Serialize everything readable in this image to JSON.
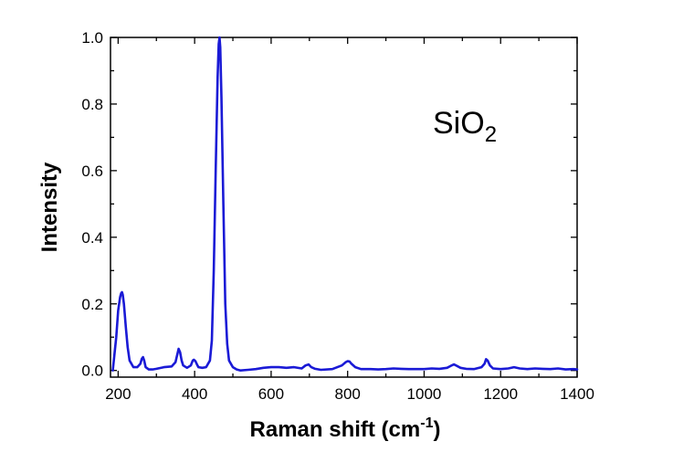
{
  "chart_data": {
    "type": "line",
    "title": "",
    "xlabel": "Raman shift (cm",
    "xlabel_sup": "-1",
    "xlabel_suffix": ")",
    "ylabel": "Intensity",
    "xlim": [
      180,
      1400
    ],
    "ylim": [
      -0.02,
      1.0
    ],
    "xticks": [
      200,
      400,
      600,
      800,
      1000,
      1200,
      1400
    ],
    "xtick_labels": [
      "200",
      "400",
      "600",
      "800",
      "1000",
      "1200",
      "1400"
    ],
    "yticks": [
      0.0,
      0.2,
      0.4,
      0.6,
      0.8,
      1.0
    ],
    "ytick_labels": [
      "0.0",
      "0.2",
      "0.4",
      "0.6",
      "0.8",
      "1.0"
    ],
    "grid": false,
    "legend": "none",
    "annotation": {
      "text": "SiO",
      "subscript": "2",
      "at": [
        1080,
        0.75
      ]
    },
    "series": [
      {
        "name": "SiO2",
        "color": "#1a1ad6",
        "x": [
          186,
          195,
          200,
          205,
          208,
          210,
          212,
          215,
          220,
          225,
          230,
          240,
          250,
          258,
          262,
          265,
          268,
          272,
          280,
          290,
          300,
          320,
          340,
          350,
          355,
          358,
          362,
          366,
          370,
          380,
          390,
          395,
          398,
          402,
          406,
          410,
          420,
          430,
          440,
          445,
          450,
          455,
          460,
          463,
          465,
          467,
          470,
          475,
          480,
          485,
          490,
          500,
          510,
          520,
          540,
          560,
          580,
          600,
          620,
          640,
          660,
          680,
          690,
          698,
          705,
          715,
          730,
          760,
          785,
          795,
          800,
          805,
          810,
          820,
          835,
          860,
          880,
          900,
          920,
          940,
          960,
          980,
          1000,
          1020,
          1040,
          1060,
          1070,
          1078,
          1085,
          1095,
          1110,
          1130,
          1150,
          1158,
          1162,
          1166,
          1172,
          1180,
          1200,
          1220,
          1235,
          1250,
          1270,
          1290,
          1310,
          1330,
          1350,
          1370,
          1390,
          1400
        ],
        "y": [
          0.0,
          0.1,
          0.18,
          0.22,
          0.232,
          0.235,
          0.228,
          0.2,
          0.13,
          0.07,
          0.03,
          0.01,
          0.01,
          0.02,
          0.035,
          0.04,
          0.03,
          0.01,
          0.003,
          0.003,
          0.005,
          0.01,
          0.012,
          0.025,
          0.05,
          0.065,
          0.055,
          0.03,
          0.015,
          0.008,
          0.015,
          0.03,
          0.032,
          0.028,
          0.018,
          0.01,
          0.008,
          0.01,
          0.03,
          0.09,
          0.3,
          0.6,
          0.88,
          0.98,
          1.0,
          0.97,
          0.82,
          0.5,
          0.2,
          0.08,
          0.03,
          0.01,
          0.003,
          0.0,
          0.002,
          0.004,
          0.008,
          0.01,
          0.01,
          0.008,
          0.01,
          0.006,
          0.015,
          0.018,
          0.01,
          0.005,
          0.002,
          0.004,
          0.015,
          0.025,
          0.028,
          0.027,
          0.02,
          0.01,
          0.004,
          0.004,
          0.003,
          0.004,
          0.006,
          0.005,
          0.004,
          0.004,
          0.004,
          0.006,
          0.005,
          0.008,
          0.014,
          0.018,
          0.014,
          0.008,
          0.005,
          0.004,
          0.01,
          0.02,
          0.034,
          0.03,
          0.015,
          0.006,
          0.004,
          0.006,
          0.01,
          0.006,
          0.004,
          0.006,
          0.005,
          0.004,
          0.006,
          0.003,
          0.004,
          0.003
        ]
      }
    ]
  }
}
